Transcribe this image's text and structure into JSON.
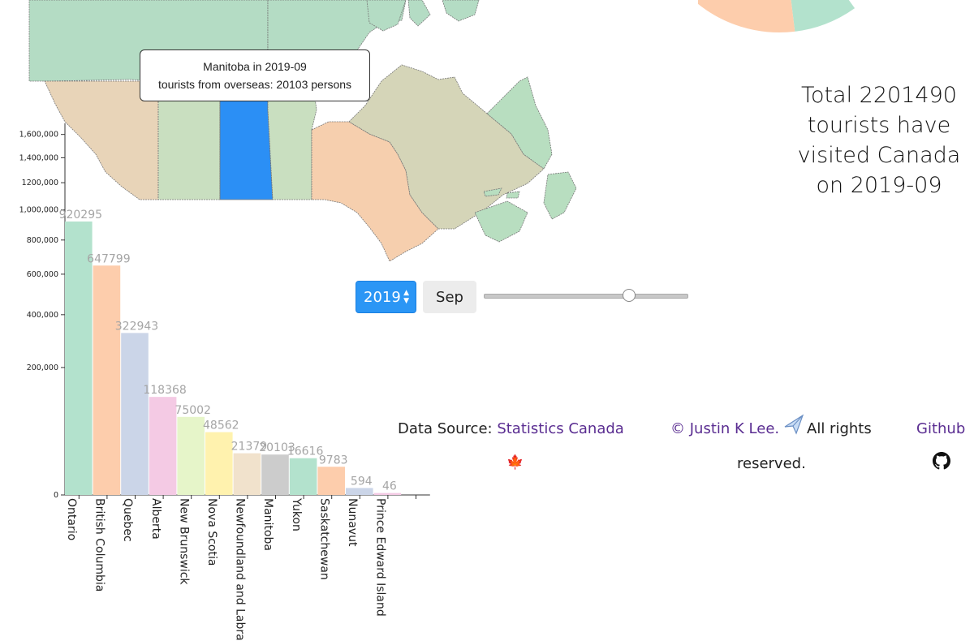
{
  "tooltip": {
    "line1": "Manitoba in 2019-09",
    "line2": "tourists from overseas: 20103 persons"
  },
  "summary": {
    "line1": "Total 2201490",
    "line2": "tourists have",
    "line3": "visited Canada",
    "line4": "on 2019-09"
  },
  "controls": {
    "year": "2019",
    "month": "Sep",
    "slider_fraction": 0.71
  },
  "footer": {
    "source_prefix": "Data Source:",
    "source_link": "Statistics Canada",
    "copyright_link": "© Justin K Lee.",
    "rights_part1": "All rights",
    "rights_part2": "reserved.",
    "github_link": "Github"
  },
  "map_colors": {
    "territories": "#b4dcc4",
    "british_columbia": "#e8d4b8",
    "prairie": "#c9dfc0",
    "manitoba_highlight": "#2b8ff5",
    "ontario": "#f6cfae",
    "quebec": "#d5d5b8",
    "atlantic": "#b8dec0"
  },
  "chart_data": {
    "type": "bar",
    "categories": [
      "Ontario",
      "British Columbia",
      "Quebec",
      "Alberta",
      "New Brunswick",
      "Nova Scotia",
      "Newfoundland and Labrador",
      "Manitoba",
      "Yukon",
      "Saskatchewan",
      "Nunavut",
      "Prince Edward Island",
      ""
    ],
    "category_display": [
      "Ontario",
      "British Columbia",
      "Quebec",
      "Alberta",
      "New Brunswick",
      "Nova Scotia",
      "Newfoundland and Labra",
      "Manitoba",
      "Yukon",
      "Saskatchewan",
      "Nunavut",
      "Prince Edward Island",
      ""
    ],
    "values": [
      920295,
      647799,
      322943,
      118368,
      75002,
      48562,
      21379,
      20103,
      16616,
      9783,
      594,
      46,
      0
    ],
    "value_labels": [
      "920295",
      "647799",
      "322943",
      "118368",
      "75002",
      "48562",
      "21379",
      "20103",
      "16616",
      "9783",
      "594",
      "46",
      ""
    ],
    "colors": [
      "#b3e2cd",
      "#fdcdac",
      "#cbd5e8",
      "#f4cae4",
      "#e6f5c9",
      "#fff2ae",
      "#f1e2cc",
      "#cccccc",
      "#b3e2cd",
      "#fdcdac",
      "#cbd5e8",
      "#f4cae4",
      "#e6f5c9"
    ],
    "y_scale": "sqrt",
    "ylim": [
      0,
      1700000
    ],
    "yticks": [
      0,
      200000,
      400000,
      600000,
      800000,
      1000000,
      1200000,
      1400000,
      1600000
    ],
    "ytick_labels": [
      "0",
      "200,000",
      "400,000",
      "600,000",
      "800,000",
      "1,000,000",
      "1200,000",
      "1,400,000",
      "1,600,000"
    ],
    "title": "",
    "xlabel": "",
    "ylabel": ""
  },
  "pie_data": {
    "type": "pie",
    "colors": [
      "#b3e2cd",
      "#fdcdac"
    ]
  }
}
